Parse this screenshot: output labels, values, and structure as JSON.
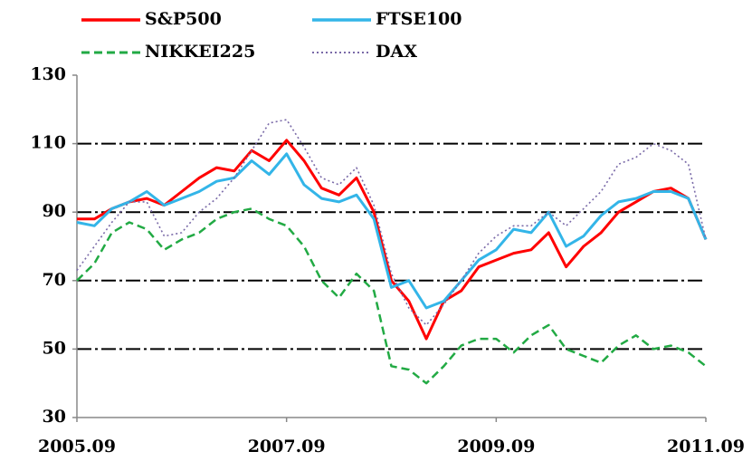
{
  "chart_data": {
    "type": "line",
    "categories": [
      "2005.09",
      null,
      null,
      null,
      null,
      null,
      null,
      null,
      null,
      null,
      null,
      null,
      "2007.09",
      null,
      null,
      null,
      null,
      null,
      null,
      null,
      null,
      null,
      null,
      null,
      "2009.09",
      null,
      null,
      null,
      null,
      null,
      null,
      null,
      null,
      null,
      null,
      null,
      "2011.09"
    ],
    "series": [
      {
        "name": "S&P500",
        "color": "#ff0000",
        "style": "solid",
        "values": [
          88,
          88,
          91,
          93,
          94,
          92,
          96,
          100,
          103,
          102,
          108,
          105,
          111,
          105,
          97,
          95,
          100,
          90,
          70,
          64,
          53,
          64,
          67,
          74,
          76,
          78,
          79,
          84,
          74,
          80,
          84,
          90,
          93,
          96,
          97,
          94,
          82
        ]
      },
      {
        "name": "FTSE100",
        "color": "#33b5e8",
        "style": "solid",
        "values": [
          87,
          86,
          91,
          93,
          96,
          92,
          94,
          96,
          99,
          100,
          105,
          101,
          107,
          98,
          94,
          93,
          95,
          88,
          68,
          70,
          62,
          64,
          70,
          76,
          79,
          85,
          84,
          90,
          80,
          83,
          89,
          93,
          94,
          96,
          96,
          94,
          82
        ]
      },
      {
        "name": "NIKKEI225",
        "color": "#22aa44",
        "style": "dashed",
        "values": [
          70,
          75,
          84,
          87,
          85,
          79,
          82,
          84,
          88,
          90,
          91,
          88,
          86,
          80,
          70,
          65,
          72,
          67,
          45,
          44,
          40,
          45,
          51,
          53,
          53,
          49,
          54,
          57,
          50,
          48,
          46,
          51,
          54,
          50,
          51,
          49,
          45
        ]
      },
      {
        "name": "DAX",
        "color": "#7a6aa8",
        "style": "dotted",
        "values": [
          73,
          80,
          87,
          93,
          93,
          83,
          84,
          90,
          94,
          100,
          108,
          116,
          117,
          109,
          100,
          98,
          103,
          92,
          72,
          62,
          57,
          63,
          70,
          78,
          83,
          86,
          86,
          90,
          86,
          91,
          96,
          104,
          106,
          110,
          108,
          104,
          82
        ]
      }
    ],
    "ylim": [
      30,
      130
    ],
    "yticks": [
      30,
      50,
      70,
      90,
      110,
      130
    ],
    "grid": true,
    "grid_lines": [
      50,
      70,
      90,
      110
    ],
    "legend": "top"
  }
}
